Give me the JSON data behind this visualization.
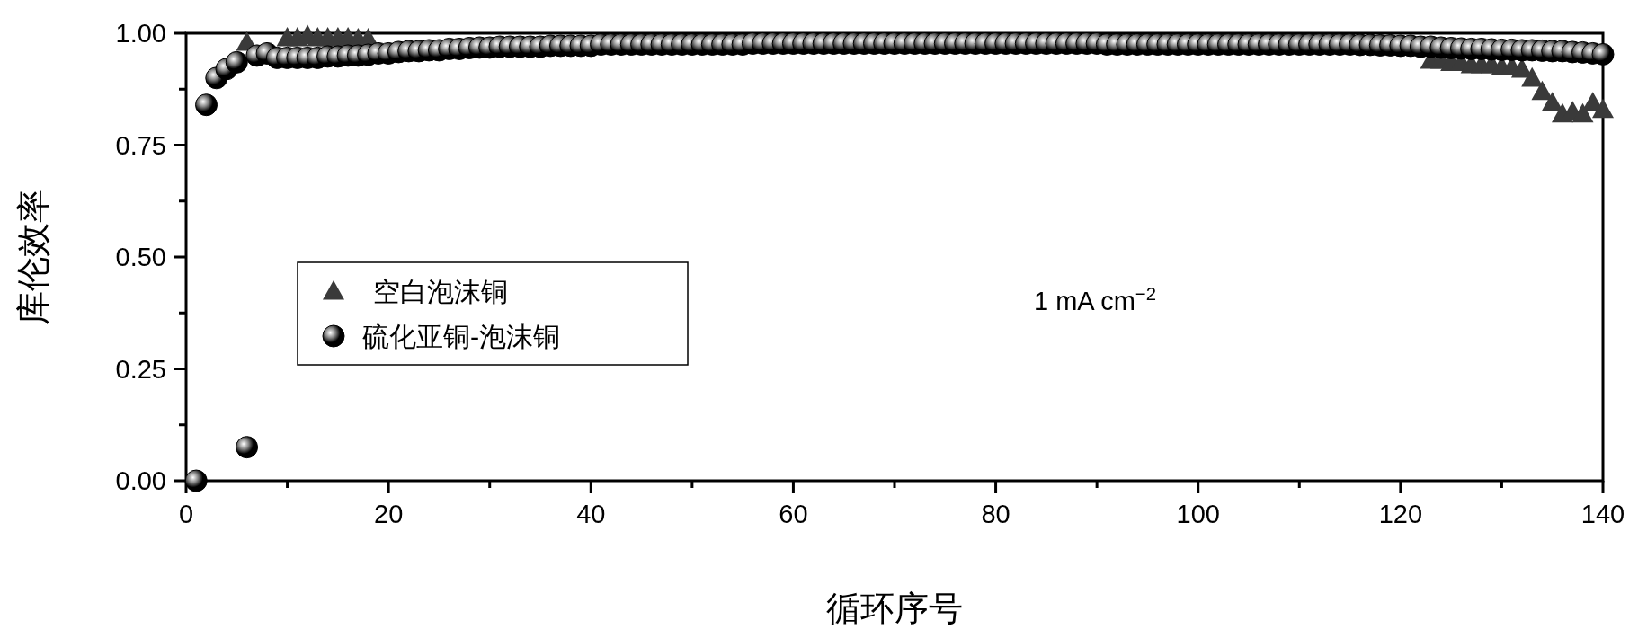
{
  "chart_data": {
    "type": "scatter",
    "xlabel": "循环序号",
    "ylabel": "库伦效率",
    "xlim": [
      0,
      140
    ],
    "xticks": [
      0,
      20,
      40,
      60,
      80,
      100,
      120,
      140
    ],
    "ylim": [
      0,
      1
    ],
    "yticks": [
      {
        "value": 0,
        "label": "0.00"
      },
      {
        "value": 0.25,
        "label": "0.25"
      },
      {
        "value": 0.5,
        "label": "0.50"
      },
      {
        "value": 0.75,
        "label": "0.75"
      },
      {
        "value": 1,
        "label": "1.00"
      }
    ],
    "grid": false,
    "legend": "left",
    "annotations": [
      "1 mA cm$^{−2}$"
    ],
    "series": [
      {
        "name": "空白泡沫铜",
        "color": "#3a3a3a",
        "marker": "triangle",
        "x": [
          6,
          10,
          11,
          12,
          13,
          14,
          15,
          16,
          17,
          18,
          123,
          124,
          125,
          126,
          127,
          128,
          129,
          130,
          131,
          132,
          133,
          134,
          135,
          136,
          137,
          138,
          139,
          140
        ],
        "values": [
          0.98,
          0.99,
          0.99,
          0.995,
          0.99,
          0.99,
          0.99,
          0.99,
          0.988,
          0.988,
          0.94,
          0.94,
          0.935,
          0.935,
          0.93,
          0.93,
          0.93,
          0.925,
          0.925,
          0.92,
          0.9,
          0.87,
          0.845,
          0.82,
          0.825,
          0.82,
          0.845,
          0.83
        ]
      },
      {
        "name": "硫化亚铜-泡沫铜",
        "color": "#000000",
        "marker": "circle",
        "x": [
          1,
          2,
          3,
          4,
          5,
          6,
          7,
          8,
          9,
          10,
          11,
          12,
          13,
          14,
          15,
          16,
          17,
          18,
          19,
          20,
          21,
          22,
          23,
          24,
          25,
          26,
          27,
          28,
          29,
          30,
          31,
          32,
          33,
          34,
          35,
          36,
          37,
          38,
          39,
          40,
          41,
          42,
          43,
          44,
          45,
          46,
          47,
          48,
          49,
          50,
          51,
          52,
          53,
          54,
          55,
          56,
          57,
          58,
          59,
          60,
          61,
          62,
          63,
          64,
          65,
          66,
          67,
          68,
          69,
          70,
          71,
          72,
          73,
          74,
          75,
          76,
          77,
          78,
          79,
          80,
          81,
          82,
          83,
          84,
          85,
          86,
          87,
          88,
          89,
          90,
          91,
          92,
          93,
          94,
          95,
          96,
          97,
          98,
          99,
          100,
          101,
          102,
          103,
          104,
          105,
          106,
          107,
          108,
          109,
          110,
          111,
          112,
          113,
          114,
          115,
          116,
          117,
          118,
          119,
          120,
          121,
          122,
          123,
          124,
          125,
          126,
          127,
          128,
          129,
          130,
          131,
          132,
          133,
          134,
          135,
          136,
          137,
          138,
          139,
          140
        ],
        "values": [
          0.0,
          0.84,
          0.9,
          0.92,
          0.935,
          0.075,
          0.95,
          0.955,
          0.945,
          0.945,
          0.945,
          0.945,
          0.945,
          0.948,
          0.948,
          0.95,
          0.95,
          0.952,
          0.955,
          0.955,
          0.958,
          0.96,
          0.96,
          0.962,
          0.962,
          0.965,
          0.965,
          0.967,
          0.968,
          0.968,
          0.97,
          0.97,
          0.97,
          0.97,
          0.97,
          0.972,
          0.972,
          0.972,
          0.972,
          0.972,
          0.975,
          0.975,
          0.975,
          0.975,
          0.975,
          0.975,
          0.975,
          0.975,
          0.975,
          0.975,
          0.975,
          0.975,
          0.975,
          0.975,
          0.975,
          0.977,
          0.977,
          0.977,
          0.977,
          0.977,
          0.977,
          0.977,
          0.977,
          0.977,
          0.977,
          0.977,
          0.977,
          0.977,
          0.977,
          0.977,
          0.977,
          0.977,
          0.977,
          0.977,
          0.977,
          0.977,
          0.977,
          0.977,
          0.977,
          0.977,
          0.977,
          0.977,
          0.977,
          0.977,
          0.977,
          0.977,
          0.977,
          0.977,
          0.977,
          0.977,
          0.975,
          0.975,
          0.975,
          0.975,
          0.975,
          0.975,
          0.975,
          0.975,
          0.975,
          0.975,
          0.975,
          0.975,
          0.975,
          0.975,
          0.975,
          0.975,
          0.975,
          0.975,
          0.975,
          0.975,
          0.975,
          0.975,
          0.975,
          0.975,
          0.975,
          0.974,
          0.974,
          0.973,
          0.973,
          0.972,
          0.972,
          0.97,
          0.97,
          0.968,
          0.967,
          0.966,
          0.965,
          0.965,
          0.964,
          0.963,
          0.963,
          0.962,
          0.962,
          0.961,
          0.96,
          0.96,
          0.958,
          0.957,
          0.955,
          0.953
        ]
      }
    ]
  }
}
